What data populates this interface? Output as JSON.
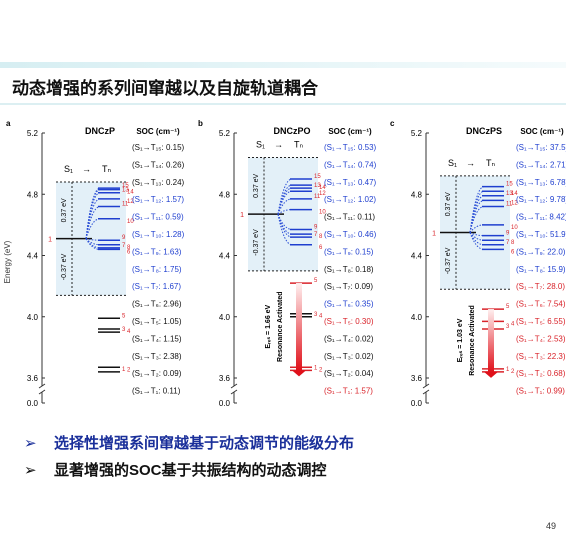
{
  "header": {
    "title": "动态增强的系列间窜越以及自旋轨道耦合"
  },
  "figure": {
    "y_label": "Energy (eV)",
    "ylim": [
      3.6,
      5.2
    ],
    "yticks": [
      {
        "value": 3.6,
        "label": "3.6"
      },
      {
        "value": 4,
        "label": "4.0"
      },
      {
        "value": 4.4,
        "label": "4.4"
      },
      {
        "value": 4.8,
        "label": "4.8"
      },
      {
        "value": 5.2,
        "label": "5.2"
      }
    ],
    "break_tick": {
      "value": 0,
      "label": "0.0"
    },
    "soc_header": "SOC (cm⁻¹)",
    "s_label": "S₁",
    "arrow": "→",
    "t_label": "Tₙ",
    "s1_number": "1",
    "panels": [
      {
        "letter": "a",
        "name": "DNCzP",
        "s1": 4.51,
        "window_top": 4.88,
        "window_bottom": 4.14,
        "gap_upper": "0.37 eV",
        "gap_lower": "-0.37 eV",
        "triplets": {
          "labels": [
            "1",
            "2",
            "3",
            "4",
            "5",
            "6",
            "7",
            "8",
            "9",
            "10",
            "11",
            "12",
            "13",
            "14",
            "15"
          ],
          "energies": [
            3.64,
            3.67,
            3.9,
            3.92,
            3.99,
            4.44,
            4.45,
            4.47,
            4.5,
            4.64,
            4.72,
            4.77,
            4.81,
            4.83,
            4.84
          ],
          "colors": [
            "#111",
            "#111",
            "#111",
            "#111",
            "#111",
            "#1f3fcf",
            "#1f3fcf",
            "#1f3fcf",
            "#1f3fcf",
            "#1f3fcf",
            "#1f3fcf",
            "#1f3fcf",
            "#1f3fcf",
            "#1f3fcf",
            "#1f3fcf"
          ]
        },
        "soc": {
          "texts": [
            "(S₁→T₁₅: 0.15)",
            "(S₁→T₁₄: 0.26)",
            "(S₁→T₁₃: 0.24)",
            "(S₁→T₁₂: 1.57)",
            "(S₁→T₁₁: 0.59)",
            "(S₁→T₁₀: 1.28)",
            "(S₁→T₉: 1.63)",
            "(S₁→T₈: 1.75)",
            "(S₁→T₇: 1.67)",
            "(S₁→T₆: 2.96)",
            "(S₁→T₅: 1.05)",
            "(S₁→T₄: 1.15)",
            "(S₁→T₃: 2.38)",
            "(S₁→T₂: 0.09)",
            "(S₁→T₁: 0.11)"
          ],
          "colors": [
            "#111",
            "#111",
            "#111",
            "#1f3fcf",
            "#1f3fcf",
            "#1f3fcf",
            "#1f3fcf",
            "#1f3fcf",
            "#1f3fcf",
            "#111",
            "#111",
            "#111",
            "#111",
            "#111",
            "#111"
          ]
        }
      },
      {
        "letter": "b",
        "name": "DNCzPO",
        "s1": 4.67,
        "window_top": 5.04,
        "window_bottom": 4.3,
        "gap_upper": "0.37 eV",
        "gap_lower": "-0.37 eV",
        "resonance": {
          "energy": "Eᵣₑₛ = 1.66 eV",
          "text": "Resonance Activated"
        },
        "triplets": {
          "labels": [
            "1",
            "2",
            "3",
            "4",
            "5",
            "6",
            "7",
            "8",
            "9",
            "10",
            "11",
            "12",
            "13",
            "14",
            "15"
          ],
          "energies": [
            3.65,
            3.67,
            4.0,
            4.02,
            4.22,
            4.47,
            4.52,
            4.54,
            4.57,
            4.7,
            4.77,
            4.82,
            4.84,
            4.86,
            4.9
          ],
          "colors": [
            "#d9232a",
            "#d9232a",
            "#111",
            "#111",
            "#d9232a",
            "#1f3fcf",
            "#1f3fcf",
            "#1f3fcf",
            "#1f3fcf",
            "#1f3fcf",
            "#1f3fcf",
            "#1f3fcf",
            "#1f3fcf",
            "#1f3fcf",
            "#1f3fcf"
          ]
        },
        "soc": {
          "texts": [
            "(S₁→T₁₅: 0.53)",
            "(S₁→T₁₄: 0.74)",
            "(S₁→T₁₃: 0.47)",
            "(S₁→T₁₂: 1.02)",
            "(S₁→T₁₁: 0.11)",
            "(S₁→T₁₀: 0.46)",
            "(S₁→T₉: 0.15)",
            "(S₁→T₈: 0.18)",
            "(S₁→T₇: 0.09)",
            "(S₁→T₆: 0.35)",
            "(S₁→T₅: 0.30)",
            "(S₁→T₄: 0.02)",
            "(S₁→T₃: 0.02)",
            "(S₁→T₂: 0.04)",
            "(S₁→T₁: 1.57)"
          ],
          "colors": [
            "#1f3fcf",
            "#1f3fcf",
            "#1f3fcf",
            "#1f3fcf",
            "#111",
            "#1f3fcf",
            "#1f3fcf",
            "#111",
            "#111",
            "#1f3fcf",
            "#d9232a",
            "#111",
            "#111",
            "#111",
            "#d9232a"
          ]
        }
      },
      {
        "letter": "c",
        "name": "DNCzPS",
        "s1": 4.55,
        "window_top": 4.92,
        "window_bottom": 4.18,
        "gap_upper": "0.37 eV",
        "gap_lower": "-0.37 eV",
        "resonance": {
          "energy": "Eᵣₑₛ = 1.03 eV",
          "text": "Resonance Activated"
        },
        "triplets": {
          "labels": [
            "1",
            "2",
            "3",
            "4",
            "5",
            "6",
            "7",
            "8",
            "9",
            "10",
            "11",
            "12",
            "13",
            "14",
            "15"
          ],
          "energies": [
            3.64,
            3.66,
            3.92,
            3.97,
            4.05,
            4.44,
            4.47,
            4.5,
            4.53,
            4.6,
            4.72,
            4.76,
            4.79,
            4.82,
            4.85
          ],
          "colors": [
            "#d9232a",
            "#d9232a",
            "#d9232a",
            "#d9232a",
            "#d9232a",
            "#1f3fcf",
            "#1f3fcf",
            "#1f3fcf",
            "#1f3fcf",
            "#1f3fcf",
            "#1f3fcf",
            "#1f3fcf",
            "#1f3fcf",
            "#1f3fcf",
            "#1f3fcf"
          ]
        },
        "soc": {
          "texts": [
            "(S₁→T₁₅: 37.5)",
            "(S₁→T₁₄: 2.71)",
            "(S₁→T₁₃: 6.78)",
            "(S₁→T₁₂: 9.78)",
            "(S₁→T₁₁: 8.42)",
            "(S₁→T₁₀: 51.9)",
            "(S₁→T₉: 22.0)",
            "(S₁→T₈: 15.9)",
            "(S₁→T₇: 28.0)",
            "(S₁→T₆: 7.54)",
            "(S₁→T₅: 6.55)",
            "(S₁→T₄: 2.53)",
            "(S₁→T₃: 22.3)",
            "(S₁→T₂: 0.68)",
            "(S₁→T₁: 0.99)"
          ],
          "colors": [
            "#1f3fcf",
            "#1f3fcf",
            "#1f3fcf",
            "#1f3fcf",
            "#1f3fcf",
            "#1f3fcf",
            "#1f3fcf",
            "#1f3fcf",
            "#d9232a",
            "#d9232a",
            "#d9232a",
            "#d9232a",
            "#d9232a",
            "#d9232a",
            "#d9232a"
          ]
        }
      }
    ]
  },
  "bullets": [
    "选择性增强系间窜越基于动态调节的能级分布",
    "显著增强的SOC基于共振结构的动态调控"
  ],
  "page_number": "49"
}
